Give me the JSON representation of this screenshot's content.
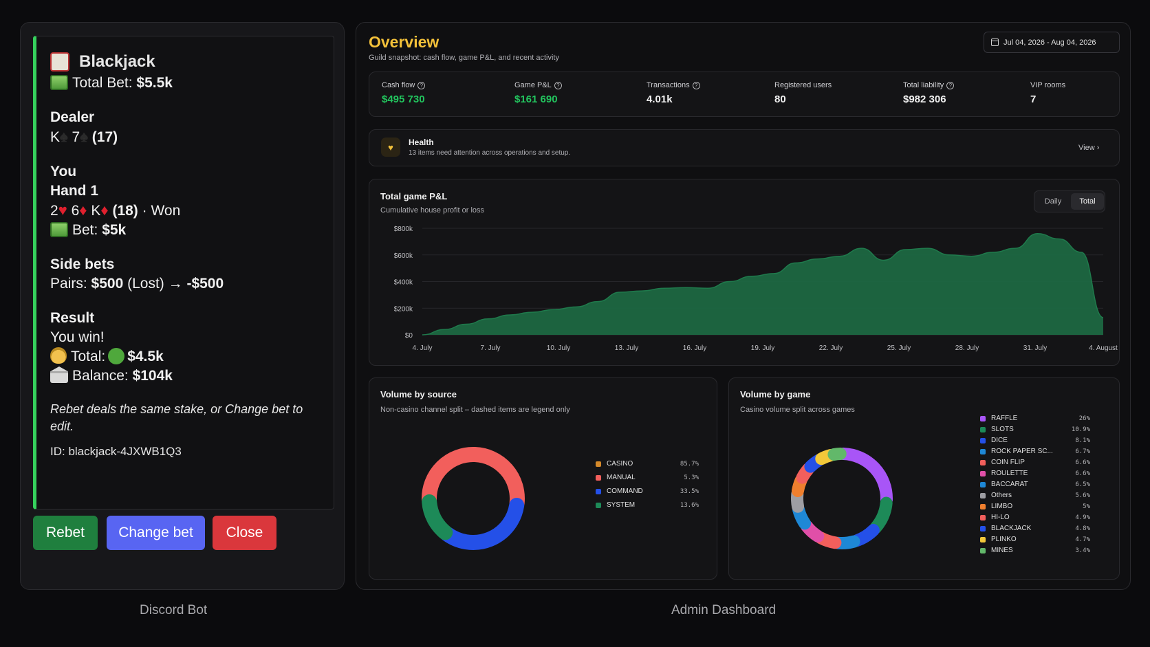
{
  "discord": {
    "title": "Blackjack",
    "total_bet_label": "Total Bet:",
    "total_bet_value": "$5.5k",
    "dealer_heading": "Dealer",
    "dealer_card1": "K",
    "dealer_card2": "7",
    "dealer_total": "(17)",
    "you_heading": "You",
    "hand_heading": "Hand 1",
    "hand_card1": "2",
    "hand_card2": "6",
    "hand_card3": "K",
    "hand_total": "(18)",
    "hand_status": "· Won",
    "hand_bet_label": "Bet:",
    "hand_bet_value": "$5k",
    "side_heading": "Side bets",
    "side_label": "Pairs:",
    "side_amount": "$500",
    "side_status": "(Lost) →",
    "side_result": "-$500",
    "result_heading": "Result",
    "result_text": "You win!",
    "total_label": "Total:",
    "total_value": "$4.5k",
    "balance_label": "Balance:",
    "balance_value": "$104k",
    "hint": "Rebet deals the same stake, or Change bet to edit.",
    "id_text": "ID: blackjack-4JXWB1Q3",
    "accent_color": "#36d15d",
    "buttons": {
      "rebet": "Rebet",
      "change_bet": "Change bet",
      "close": "Close"
    },
    "caption": "Discord Bot"
  },
  "admin": {
    "title": "Overview",
    "subtitle": "Guild snapshot: cash flow, game P&L, and recent activity",
    "date_range": "Jul 04, 2026 - Aug 04, 2026",
    "kpis": [
      {
        "label": "Cash flow",
        "value": "$495 730"
      },
      {
        "label": "Game P&L",
        "value": "$161 690"
      },
      {
        "label": "Transactions",
        "value": "4.01k"
      },
      {
        "label": "Registered users",
        "value": "80"
      },
      {
        "label": "Total liability",
        "value": "$982 306"
      },
      {
        "label": "VIP rooms",
        "value": "7"
      }
    ],
    "health": {
      "title": "Health",
      "subtitle": "13 items need attention across operations and setup.",
      "action": "View"
    },
    "pnl": {
      "title": "Total game P&L",
      "subtitle": "Cumulative house profit or loss",
      "toggle_daily": "Daily",
      "toggle_total": "Total"
    },
    "volume_source": {
      "title": "Volume by source",
      "subtitle": "Non-casino channel split – dashed items are legend only"
    },
    "volume_game": {
      "title": "Volume by game",
      "subtitle": "Casino volume split across games"
    },
    "caption": "Admin Dashboard",
    "accent_color": "#f3c13a"
  },
  "chart_data": [
    {
      "type": "area",
      "title": "Total game P&L",
      "subtitle": "Cumulative house profit or loss",
      "yticks": [
        "$800k",
        "$600k",
        "$400k",
        "$200k",
        "$0"
      ],
      "ylim": [
        0,
        800000
      ],
      "xticks": [
        "4. July",
        "7. July",
        "10. July",
        "13. July",
        "16. July",
        "19. July",
        "22. July",
        "25. July",
        "28. July",
        "31. July",
        "4. August"
      ],
      "x_days": [
        0,
        1,
        2,
        3,
        4,
        5,
        6,
        7,
        8,
        9,
        10,
        11,
        12,
        13,
        14,
        15,
        16,
        17,
        18,
        19,
        20,
        21,
        22,
        23,
        24,
        25,
        26,
        27,
        28,
        29,
        30,
        31
      ],
      "values": [
        0,
        40000,
        80000,
        120000,
        150000,
        170000,
        190000,
        210000,
        250000,
        320000,
        330000,
        350000,
        355000,
        350000,
        400000,
        440000,
        460000,
        540000,
        570000,
        590000,
        650000,
        560000,
        640000,
        650000,
        600000,
        590000,
        620000,
        650000,
        760000,
        720000,
        620000,
        130000
      ],
      "color": "#1d6b44",
      "grid": true
    },
    {
      "type": "pie",
      "title": "Volume by source",
      "subtitle": "Non-casino channel split – dashed items are legend only",
      "labels": [
        "CASINO",
        "MANUAL",
        "COMMAND",
        "SYSTEM"
      ],
      "display_pct": [
        "85.7%",
        "5.3%",
        "33.5%",
        "13.6%"
      ],
      "values": [
        52.9,
        0,
        33.5,
        13.6
      ],
      "colors": [
        "#d4892a",
        "#f25f5c",
        "#2450e8",
        "#1d8a58"
      ],
      "ring_colors": [
        "#f25f5c",
        "#2450e8",
        "#1d8a58"
      ],
      "ring_values": [
        52.9,
        33.5,
        13.6
      ]
    },
    {
      "type": "pie",
      "title": "Volume by game",
      "subtitle": "Casino volume split across games",
      "labels": [
        "RAFFLE",
        "SLOTS",
        "DICE",
        "ROCK PAPER SC...",
        "COIN FLIP",
        "ROULETTE",
        "BACCARAT",
        "Others",
        "LIMBO",
        "HI-LO",
        "BLACKJACK",
        "PLINKO",
        "MINES"
      ],
      "display_pct": [
        "26%",
        "10.9%",
        "8.1%",
        "6.7%",
        "6.6%",
        "6.6%",
        "6.5%",
        "5.6%",
        "5%",
        "4.9%",
        "4.8%",
        "4.7%",
        "3.4%"
      ],
      "values": [
        26,
        10.9,
        8.1,
        6.7,
        6.6,
        6.6,
        6.5,
        5.6,
        5,
        4.9,
        4.8,
        4.7,
        3.4
      ],
      "colors": [
        "#a855f7",
        "#1d8a58",
        "#2450e8",
        "#1e88d6",
        "#f25f5c",
        "#e04fa8",
        "#1e88d6",
        "#9e9ea3",
        "#ef7f2e",
        "#f25f5c",
        "#2450e8",
        "#f2c83a",
        "#62b86a"
      ]
    }
  ]
}
